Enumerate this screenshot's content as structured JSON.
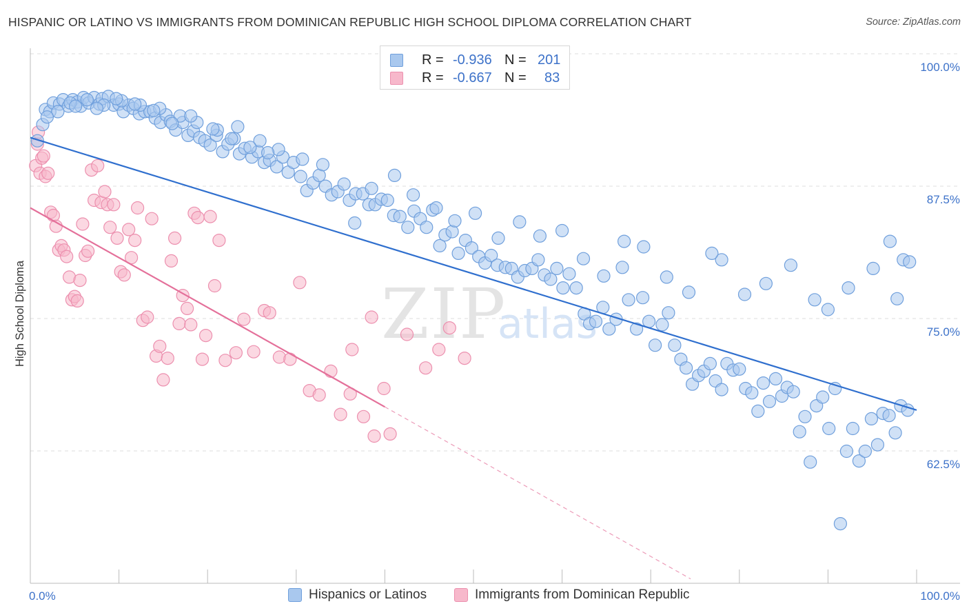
{
  "header": {
    "title": "HISPANIC OR LATINO VS IMMIGRANTS FROM DOMINICAN REPUBLIC HIGH SCHOOL DIPLOMA CORRELATION CHART",
    "source": "Source: ZipAtlas.com"
  },
  "watermark": {
    "zip": "ZIP",
    "atlas": "atlas"
  },
  "legend_top": {
    "rows": [
      {
        "r_label": "R =",
        "r_value": "-0.936",
        "n_label": "N =",
        "n_value": "201"
      },
      {
        "r_label": "R =",
        "r_value": "-0.667",
        "n_label": "N =",
        "n_value": "83"
      }
    ]
  },
  "legend_bottom": {
    "items": [
      {
        "label": "Hispanics or Latinos"
      },
      {
        "label": "Immigrants from Dominican Republic"
      }
    ]
  },
  "colors": {
    "blue_fill": "#a9c8ee",
    "blue_stroke": "#6f9fdc",
    "blue_line": "#2f6fce",
    "pink_fill": "#f7b8cb",
    "pink_stroke": "#ec8fae",
    "pink_line": "#e4709a",
    "tick_label": "#3d72c9",
    "grid": "#dcdcdc"
  },
  "chart_data": {
    "type": "scatter",
    "title": "HISPANIC OR LATINO VS IMMIGRANTS FROM DOMINICAN REPUBLIC HIGH SCHOOL DIPLOMA CORRELATION CHART",
    "xlabel": "",
    "ylabel": "High School Diploma",
    "xlim": [
      0,
      100
    ],
    "ylim": [
      51,
      99
    ],
    "x_tick_labels": [
      "0.0%",
      "100.0%"
    ],
    "y_ticks": [
      {
        "value": 100,
        "label": "100.0%"
      },
      {
        "value": 87.5,
        "label": "87.5%"
      },
      {
        "value": 75,
        "label": "75.0%"
      },
      {
        "value": 62.5,
        "label": "62.5%"
      }
    ],
    "grid": true,
    "series": [
      {
        "name": "Hispanics or Latinos",
        "color": "#a9c8ee",
        "trend": {
          "x": [
            0,
            100
          ],
          "y": [
            92.4,
            67.2
          ]
        },
        "points": [
          [
            0.8,
            92.1
          ],
          [
            1.4,
            93.6
          ],
          [
            1.7,
            95.0
          ],
          [
            2.2,
            94.8
          ],
          [
            2.6,
            95.6
          ],
          [
            3.3,
            95.5
          ],
          [
            3.7,
            95.9
          ],
          [
            4.3,
            95.3
          ],
          [
            4.8,
            95.9
          ],
          [
            5.3,
            95.7
          ],
          [
            5.7,
            95.3
          ],
          [
            6.0,
            96.1
          ],
          [
            6.6,
            95.6
          ],
          [
            7.2,
            96.1
          ],
          [
            7.8,
            95.5
          ],
          [
            8.1,
            96.0
          ],
          [
            8.8,
            96.2
          ],
          [
            9.4,
            95.4
          ],
          [
            10.0,
            95.5
          ],
          [
            10.5,
            94.8
          ],
          [
            11.1,
            95.4
          ],
          [
            11.6,
            95.1
          ],
          [
            12.3,
            94.6
          ],
          [
            12.9,
            94.8
          ],
          [
            13.5,
            94.8
          ],
          [
            14.1,
            94.2
          ],
          [
            14.7,
            93.8
          ],
          [
            15.3,
            94.5
          ],
          [
            15.8,
            93.9
          ],
          [
            16.4,
            93.1
          ],
          [
            17.2,
            93.8
          ],
          [
            17.8,
            92.6
          ],
          [
            18.4,
            93.0
          ],
          [
            19.1,
            92.4
          ],
          [
            19.7,
            92.1
          ],
          [
            20.3,
            91.7
          ],
          [
            21.0,
            92.6
          ],
          [
            21.7,
            91.1
          ],
          [
            22.3,
            91.8
          ],
          [
            23.0,
            92.3
          ],
          [
            23.6,
            90.9
          ],
          [
            24.2,
            91.4
          ],
          [
            25.0,
            90.6
          ],
          [
            25.7,
            91.1
          ],
          [
            26.4,
            90.1
          ],
          [
            27.0,
            90.3
          ],
          [
            27.8,
            89.7
          ],
          [
            28.5,
            90.6
          ],
          [
            29.1,
            89.2
          ],
          [
            29.7,
            90.1
          ],
          [
            30.5,
            88.8
          ],
          [
            31.2,
            87.5
          ],
          [
            31.9,
            88.2
          ],
          [
            32.6,
            88.9
          ],
          [
            33.3,
            87.9
          ],
          [
            34.0,
            87.1
          ],
          [
            34.7,
            87.4
          ],
          [
            35.4,
            88.1
          ],
          [
            36.0,
            86.6
          ],
          [
            36.7,
            87.2
          ],
          [
            37.5,
            87.2
          ],
          [
            38.2,
            86.2
          ],
          [
            38.9,
            86.2
          ],
          [
            39.6,
            86.7
          ],
          [
            40.3,
            86.6
          ],
          [
            41.0,
            85.2
          ],
          [
            41.7,
            85.1
          ],
          [
            42.6,
            84.1
          ],
          [
            43.3,
            85.6
          ],
          [
            44.0,
            84.9
          ],
          [
            44.7,
            84.1
          ],
          [
            45.4,
            85.7
          ],
          [
            46.2,
            82.4
          ],
          [
            46.8,
            83.4
          ],
          [
            47.6,
            83.7
          ],
          [
            48.3,
            81.7
          ],
          [
            49.1,
            82.9
          ],
          [
            49.8,
            82.2
          ],
          [
            50.6,
            81.4
          ],
          [
            51.3,
            80.8
          ],
          [
            52.0,
            81.5
          ],
          [
            52.7,
            80.6
          ],
          [
            53.6,
            80.4
          ],
          [
            54.3,
            80.3
          ],
          [
            55.0,
            79.5
          ],
          [
            55.8,
            80.1
          ],
          [
            56.6,
            80.3
          ],
          [
            57.3,
            81.1
          ],
          [
            58.0,
            79.7
          ],
          [
            58.7,
            79.3
          ],
          [
            59.4,
            80.3
          ],
          [
            60.1,
            78.5
          ],
          [
            60.8,
            79.8
          ],
          [
            61.6,
            78.5
          ],
          [
            62.5,
            76.1
          ],
          [
            63.1,
            75.2
          ],
          [
            63.8,
            75.4
          ],
          [
            64.6,
            76.7
          ],
          [
            65.3,
            74.7
          ],
          [
            66.1,
            75.6
          ],
          [
            66.8,
            80.4
          ],
          [
            67.5,
            77.4
          ],
          [
            68.4,
            74.7
          ],
          [
            69.1,
            77.6
          ],
          [
            69.8,
            75.4
          ],
          [
            70.5,
            73.2
          ],
          [
            71.3,
            75.1
          ],
          [
            72.0,
            76.2
          ],
          [
            72.7,
            73.2
          ],
          [
            73.4,
            71.9
          ],
          [
            74.0,
            71.1
          ],
          [
            74.7,
            69.6
          ],
          [
            75.4,
            70.4
          ],
          [
            76.0,
            70.8
          ],
          [
            76.7,
            71.5
          ],
          [
            77.3,
            69.9
          ],
          [
            78.0,
            69.1
          ],
          [
            78.6,
            71.5
          ],
          [
            79.3,
            70.9
          ],
          [
            80.0,
            71.0
          ],
          [
            80.7,
            69.2
          ],
          [
            81.4,
            68.8
          ],
          [
            82.1,
            67.1
          ],
          [
            82.7,
            69.7
          ],
          [
            83.4,
            68.0
          ],
          [
            84.1,
            70.1
          ],
          [
            84.8,
            68.5
          ],
          [
            85.4,
            69.3
          ],
          [
            86.1,
            68.9
          ],
          [
            86.8,
            65.2
          ],
          [
            87.4,
            66.6
          ],
          [
            88.0,
            62.4
          ],
          [
            88.7,
            67.6
          ],
          [
            89.4,
            68.4
          ],
          [
            90.1,
            65.5
          ],
          [
            90.8,
            69.2
          ],
          [
            91.4,
            56.7
          ],
          [
            92.1,
            63.4
          ],
          [
            92.8,
            65.5
          ],
          [
            93.5,
            62.5
          ],
          [
            94.2,
            63.4
          ],
          [
            94.9,
            66.4
          ],
          [
            95.6,
            64.0
          ],
          [
            96.2,
            66.9
          ],
          [
            96.9,
            66.7
          ],
          [
            97.6,
            65.1
          ],
          [
            98.2,
            67.6
          ],
          [
            99.0,
            67.2
          ],
          [
            98.5,
            81.1
          ],
          [
            97.0,
            82.8
          ],
          [
            99.2,
            80.9
          ],
          [
            97.8,
            77.5
          ],
          [
            95.1,
            80.3
          ],
          [
            92.3,
            78.5
          ],
          [
            90.0,
            76.5
          ],
          [
            88.5,
            77.4
          ],
          [
            85.8,
            80.6
          ],
          [
            83.0,
            78.9
          ],
          [
            80.6,
            77.9
          ],
          [
            78.0,
            81.1
          ],
          [
            76.9,
            81.7
          ],
          [
            74.3,
            78.1
          ],
          [
            71.8,
            79.5
          ],
          [
            69.2,
            82.3
          ],
          [
            67.0,
            82.8
          ],
          [
            64.7,
            79.6
          ],
          [
            62.4,
            81.2
          ],
          [
            60.0,
            83.8
          ],
          [
            57.5,
            83.3
          ],
          [
            55.2,
            84.6
          ],
          [
            52.8,
            83.1
          ],
          [
            50.2,
            85.4
          ],
          [
            47.9,
            84.7
          ],
          [
            45.8,
            85.9
          ],
          [
            43.2,
            87.1
          ],
          [
            41.1,
            88.9
          ],
          [
            38.5,
            87.7
          ],
          [
            36.6,
            84.5
          ],
          [
            33.0,
            89.9
          ],
          [
            30.7,
            90.4
          ],
          [
            28.0,
            91.3
          ],
          [
            25.9,
            92.1
          ],
          [
            23.4,
            93.4
          ],
          [
            21.1,
            93.1
          ],
          [
            18.8,
            93.8
          ],
          [
            16.9,
            94.4
          ],
          [
            14.6,
            95.1
          ],
          [
            12.4,
            95.4
          ],
          [
            10.3,
            95.8
          ],
          [
            8.3,
            95.4
          ],
          [
            6.4,
            95.9
          ],
          [
            4.5,
            95.6
          ],
          [
            3.1,
            94.8
          ],
          [
            1.9,
            94.3
          ],
          [
            5.1,
            95.3
          ],
          [
            7.5,
            95.1
          ],
          [
            9.7,
            96.0
          ],
          [
            11.8,
            95.5
          ],
          [
            13.9,
            94.9
          ],
          [
            16.0,
            93.7
          ],
          [
            18.1,
            94.4
          ],
          [
            20.6,
            93.2
          ],
          [
            22.7,
            92.3
          ],
          [
            24.8,
            91.5
          ],
          [
            26.8,
            91.0
          ]
        ]
      },
      {
        "name": "Immigrants from Dominican Republic",
        "color": "#f7b8cb",
        "trend": {
          "x": [
            0,
            40
          ],
          "y": [
            85.9,
            67.5
          ]
        },
        "trend_extension": {
          "x": [
            40,
            74.5
          ],
          "y": [
            67.5,
            51.6
          ]
        },
        "points": [
          [
            0.6,
            89.8
          ],
          [
            0.8,
            91.8
          ],
          [
            0.9,
            92.9
          ],
          [
            1.1,
            89.1
          ],
          [
            1.3,
            90.5
          ],
          [
            1.5,
            90.7
          ],
          [
            1.7,
            88.8
          ],
          [
            2.0,
            89.1
          ],
          [
            2.3,
            85.5
          ],
          [
            2.6,
            85.2
          ],
          [
            2.9,
            84.2
          ],
          [
            3.2,
            82.0
          ],
          [
            3.5,
            82.4
          ],
          [
            3.8,
            82.0
          ],
          [
            4.1,
            81.4
          ],
          [
            4.4,
            79.5
          ],
          [
            4.7,
            77.4
          ],
          [
            5.0,
            77.7
          ],
          [
            5.3,
            77.3
          ],
          [
            5.6,
            79.2
          ],
          [
            5.9,
            84.4
          ],
          [
            6.2,
            81.5
          ],
          [
            6.5,
            81.9
          ],
          [
            6.9,
            89.4
          ],
          [
            7.2,
            86.6
          ],
          [
            7.6,
            89.8
          ],
          [
            8.0,
            86.4
          ],
          [
            8.4,
            87.4
          ],
          [
            8.7,
            86.2
          ],
          [
            9.0,
            84.1
          ],
          [
            9.4,
            86.2
          ],
          [
            9.8,
            83.1
          ],
          [
            10.2,
            80.0
          ],
          [
            10.6,
            79.7
          ],
          [
            11.1,
            83.9
          ],
          [
            11.4,
            81.3
          ],
          [
            11.8,
            82.9
          ],
          [
            12.1,
            85.9
          ],
          [
            12.7,
            75.5
          ],
          [
            13.2,
            75.8
          ],
          [
            13.7,
            84.9
          ],
          [
            14.2,
            72.2
          ],
          [
            14.6,
            73.1
          ],
          [
            15.0,
            70.0
          ],
          [
            15.5,
            72.0
          ],
          [
            15.9,
            81.0
          ],
          [
            16.3,
            83.1
          ],
          [
            16.8,
            75.2
          ],
          [
            17.2,
            77.8
          ],
          [
            17.7,
            76.6
          ],
          [
            18.1,
            75.1
          ],
          [
            18.5,
            85.4
          ],
          [
            18.9,
            85.0
          ],
          [
            19.4,
            71.9
          ],
          [
            19.8,
            74.1
          ],
          [
            20.3,
            85.1
          ],
          [
            20.8,
            78.7
          ],
          [
            21.3,
            82.9
          ],
          [
            22.0,
            71.8
          ],
          [
            23.2,
            72.5
          ],
          [
            24.1,
            75.6
          ],
          [
            25.2,
            72.6
          ],
          [
            26.4,
            76.4
          ],
          [
            27.0,
            76.2
          ],
          [
            28.1,
            72.1
          ],
          [
            29.3,
            71.9
          ],
          [
            30.4,
            79.0
          ],
          [
            31.5,
            69.0
          ],
          [
            32.6,
            68.6
          ],
          [
            33.9,
            70.8
          ],
          [
            35.0,
            66.8
          ],
          [
            36.1,
            68.7
          ],
          [
            37.6,
            66.6
          ],
          [
            38.8,
            64.8
          ],
          [
            39.9,
            69.2
          ],
          [
            40.6,
            65.0
          ],
          [
            42.5,
            74.2
          ],
          [
            44.6,
            71.1
          ],
          [
            46.1,
            72.8
          ],
          [
            47.3,
            74.8
          ],
          [
            49.0,
            72.0
          ],
          [
            38.5,
            75.8
          ],
          [
            36.3,
            72.8
          ]
        ]
      }
    ]
  }
}
